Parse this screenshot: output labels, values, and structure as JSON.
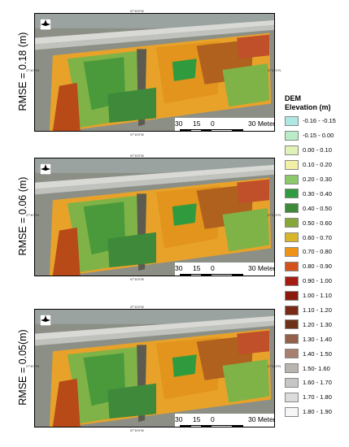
{
  "panels": [
    {
      "rmse_label": "RMSE = 0.18 (m)",
      "coord_top": "97°10'0\"W",
      "coord_bottom": "97°10'0\"W",
      "coord_left": "27°42'0\"N",
      "coord_right": "27°42'0\"N",
      "scale": {
        "ticks": [
          "30",
          "15",
          "0",
          "30 Meters"
        ]
      }
    },
    {
      "rmse_label": "RMSE = 0.06 (m)",
      "coord_top": "97°10'0\"W",
      "coord_bottom": "97°10'0\"W",
      "coord_left": "27°42'0\"N",
      "coord_right": "27°42'0\"N",
      "scale": {
        "ticks": [
          "30",
          "15",
          "0",
          "30 Meters"
        ]
      }
    },
    {
      "rmse_label": "RMSE = 0.05(m)",
      "coord_top": "97°10'0\"W",
      "coord_bottom": "97°10'0\"W",
      "coord_left": "27°42'0\"N",
      "coord_right": "27°42'0\"N",
      "scale": {
        "ticks": [
          "30",
          "15",
          "0",
          "30 Meters"
        ]
      }
    }
  ],
  "legend": {
    "title_line1": "DEM",
    "title_line2": "Elevation (m)",
    "classes": [
      {
        "label": "-0.16 - -0.15",
        "color": "#aee8e2"
      },
      {
        "label": "-0.15 - 0.00",
        "color": "#b9edc7"
      },
      {
        "label": "0.00 - 0.10",
        "color": "#dff3b6"
      },
      {
        "label": "0.10 - 0.20",
        "color": "#f2f0a6"
      },
      {
        "label": "0.20 - 0.30",
        "color": "#8cc96a"
      },
      {
        "label": "0.30 - 0.40",
        "color": "#2f9a3e"
      },
      {
        "label": "0.40 - 0.50",
        "color": "#3f8a3a"
      },
      {
        "label": "0.50 - 0.60",
        "color": "#86a838"
      },
      {
        "label": "0.60 - 0.70",
        "color": "#d9b52a"
      },
      {
        "label": "0.70 - 0.80",
        "color": "#ef9416"
      },
      {
        "label": "0.80 - 0.90",
        "color": "#d2521a"
      },
      {
        "label": "0.90 - 1.00",
        "color": "#a51c10"
      },
      {
        "label": "1.00 - 1.10",
        "color": "#8a1a0e"
      },
      {
        "label": "1.10 - 1.20",
        "color": "#7a2a14"
      },
      {
        "label": "1.20 - 1.30",
        "color": "#6e3218"
      },
      {
        "label": "1.30 - 1.40",
        "color": "#94604a"
      },
      {
        "label": "1.40 - 1.50",
        "color": "#a88070"
      },
      {
        "label": "1.50- 1.60",
        "color": "#b8b4b0"
      },
      {
        "label": "1.60 - 1.70",
        "color": "#c8c6c4"
      },
      {
        "label": "1.70 - 1.80",
        "color": "#dcdcdc"
      },
      {
        "label": "1.80 - 1.90",
        "color": "#f6f6f6"
      }
    ]
  }
}
